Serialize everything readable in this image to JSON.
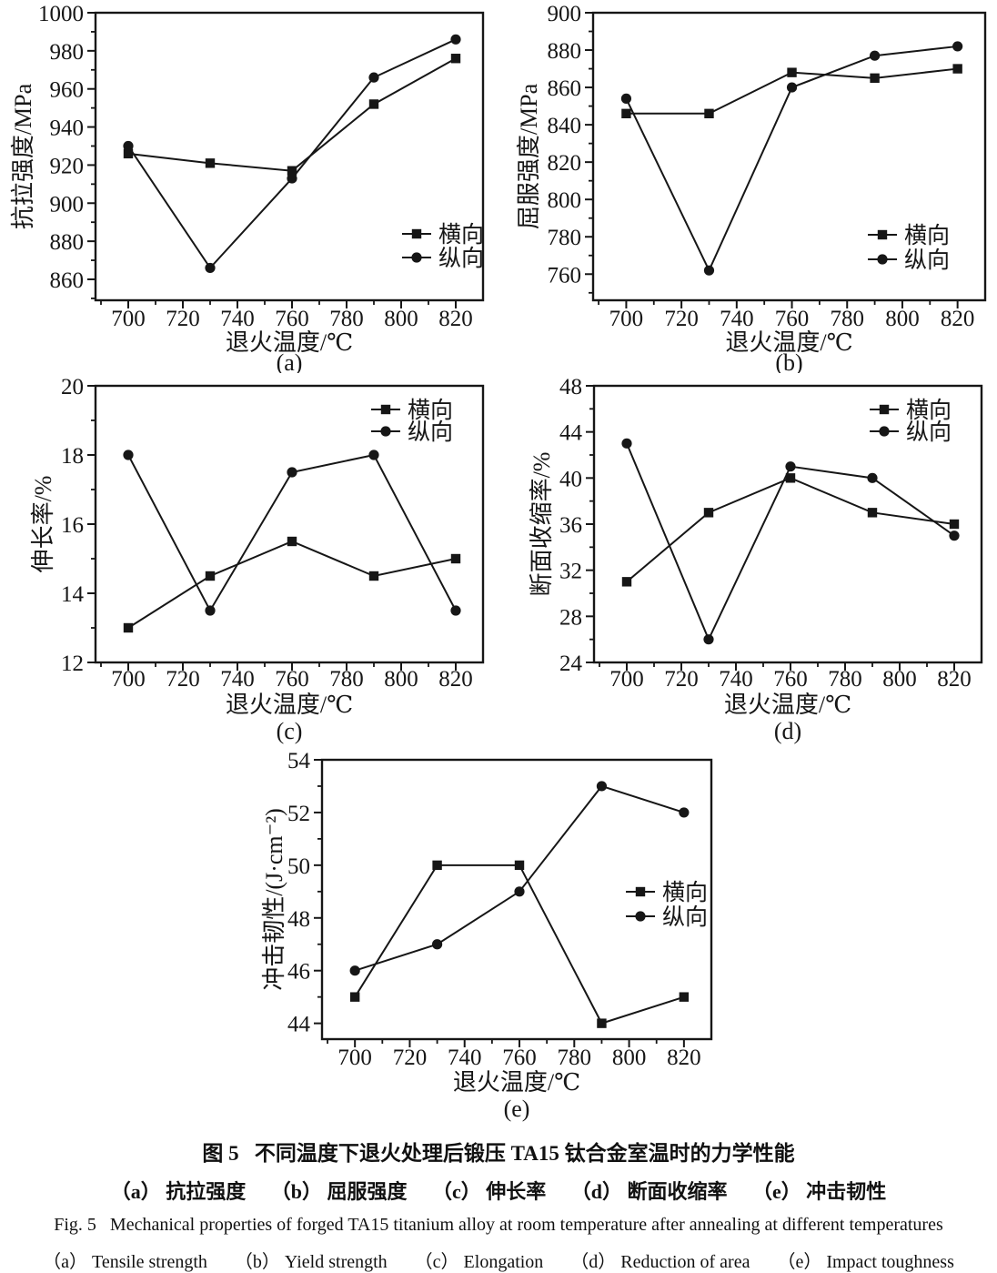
{
  "caption": {
    "zh_title": "图 5   不同温度下退火处理后锻压 TA15 钛合金室温时的力学性能",
    "zh_items": "（a） 抗拉强度     （b） 屈服强度     （c） 伸长率     （d） 断面收缩率     （e） 冲击韧性",
    "en_title": "Fig. 5   Mechanical properties of forged TA15 titanium alloy at room temperature after annealing at different temperatures",
    "en_items": "（a） Tensile strength      （b） Yield strength      （c） Elongation      （d） Reduction of area      （e） Impact toughness"
  },
  "legend_labels": {
    "transverse": "横向",
    "longitudinal": "纵向"
  },
  "line_color": "#161616",
  "chart_data": [
    {
      "id": "a",
      "type": "line",
      "sublabel": "(a)",
      "xlabel": "退火温度/℃",
      "ylabel": "抗拉强度/MPa",
      "x": [
        700,
        730,
        760,
        790,
        820
      ],
      "xlim": [
        688,
        830
      ],
      "xticks": [
        700,
        720,
        740,
        760,
        780,
        800,
        820
      ],
      "xminor_step": 10,
      "ylim": [
        849,
        1000
      ],
      "yticks": [
        860,
        880,
        900,
        920,
        940,
        960,
        980,
        1000
      ],
      "yminor_step": 10,
      "grid": false,
      "legend_position": "bottom-right",
      "series": [
        {
          "name": "横向",
          "marker": "square",
          "values": [
            926,
            921,
            917,
            952,
            976
          ]
        },
        {
          "name": "纵向",
          "marker": "circle",
          "values": [
            930,
            866,
            913,
            966,
            986
          ]
        }
      ]
    },
    {
      "id": "b",
      "type": "line",
      "sublabel": "(b)",
      "xlabel": "退火温度/℃",
      "ylabel": "屈服强度/MPa",
      "x": [
        700,
        730,
        760,
        790,
        820
      ],
      "xlim": [
        688,
        830
      ],
      "xticks": [
        700,
        720,
        740,
        760,
        780,
        800,
        820
      ],
      "xminor_step": 10,
      "ylim": [
        746,
        900
      ],
      "yticks": [
        760,
        780,
        800,
        820,
        840,
        860,
        880,
        900
      ],
      "yminor_step": 10,
      "grid": false,
      "legend_position": "mid-right",
      "series": [
        {
          "name": "横向",
          "marker": "square",
          "values": [
            846,
            846,
            868,
            865,
            870
          ]
        },
        {
          "name": "纵向",
          "marker": "circle",
          "values": [
            854,
            762,
            860,
            877,
            882
          ]
        }
      ]
    },
    {
      "id": "c",
      "type": "line",
      "sublabel": "(c)",
      "xlabel": "退火温度/℃",
      "ylabel": "伸长率/%",
      "x": [
        700,
        730,
        760,
        790,
        820
      ],
      "xlim": [
        688,
        830
      ],
      "xticks": [
        700,
        720,
        740,
        760,
        780,
        800,
        820
      ],
      "xminor_step": 10,
      "ylim": [
        12,
        20
      ],
      "yticks": [
        12,
        14,
        16,
        18,
        20
      ],
      "yminor_step": 1,
      "grid": false,
      "legend_position": "top-right",
      "series": [
        {
          "name": "横向",
          "marker": "square",
          "values": [
            13.0,
            14.5,
            15.5,
            14.5,
            15.0
          ]
        },
        {
          "name": "纵向",
          "marker": "circle",
          "values": [
            18.0,
            13.5,
            17.5,
            18.0,
            13.5
          ]
        }
      ]
    },
    {
      "id": "d",
      "type": "line",
      "sublabel": "(d)",
      "xlabel": "退火温度/℃",
      "ylabel": "断面收缩率/%",
      "x": [
        700,
        730,
        760,
        790,
        820
      ],
      "xlim": [
        688,
        830
      ],
      "xticks": [
        700,
        720,
        740,
        760,
        780,
        800,
        820
      ],
      "xminor_step": 10,
      "ylim": [
        24,
        48
      ],
      "yticks": [
        24,
        28,
        32,
        36,
        40,
        44,
        48
      ],
      "yminor_step": 2,
      "grid": false,
      "legend_position": "top-right",
      "series": [
        {
          "name": "横向",
          "marker": "square",
          "values": [
            31,
            37,
            40,
            37,
            36
          ]
        },
        {
          "name": "纵向",
          "marker": "circle",
          "values": [
            43,
            26,
            41,
            40,
            35
          ]
        }
      ]
    },
    {
      "id": "e",
      "type": "line",
      "sublabel": "(e)",
      "xlabel": "退火温度/℃",
      "ylabel": "冲击韧性/(J·cm⁻²)",
      "x": [
        700,
        730,
        760,
        790,
        820
      ],
      "xlim": [
        688,
        830
      ],
      "xticks": [
        700,
        720,
        740,
        760,
        780,
        800,
        820
      ],
      "xminor_step": 10,
      "ylim": [
        43.4,
        54
      ],
      "yticks": [
        44,
        46,
        48,
        50,
        52,
        54
      ],
      "yminor_step": 1,
      "grid": false,
      "legend_position": "mid-right",
      "series": [
        {
          "name": "横向",
          "marker": "square",
          "values": [
            45,
            50,
            50,
            44,
            45
          ]
        },
        {
          "name": "纵向",
          "marker": "circle",
          "values": [
            46,
            47,
            49,
            53,
            52
          ]
        }
      ]
    }
  ]
}
